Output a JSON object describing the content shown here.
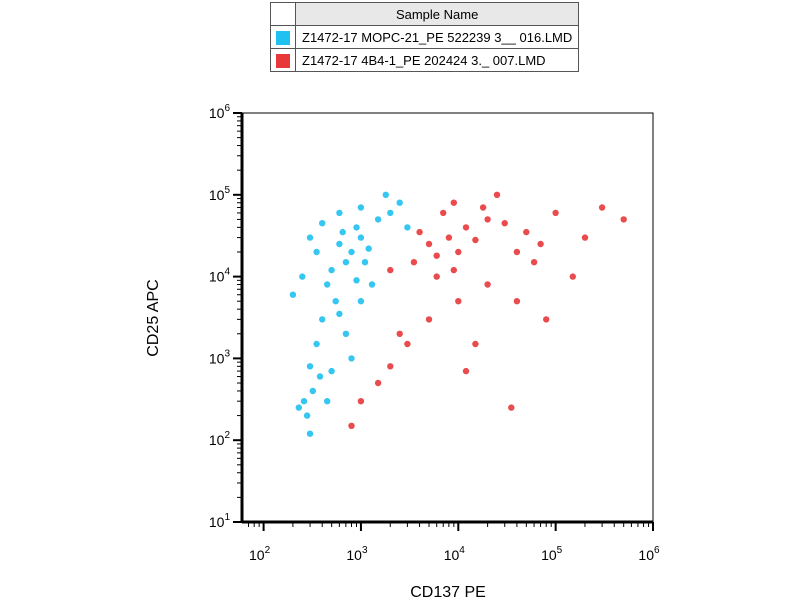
{
  "legend": {
    "header": "Sample Name",
    "entries": [
      {
        "label": "Z1472-17 MOPC-21_PE 522239 3__ 016.LMD",
        "color": "#1fc1f0"
      },
      {
        "label": "Z1472-17 4B4-1_PE 202424 3._ 007.LMD",
        "color": "#e8383a"
      }
    ]
  },
  "chart_data": {
    "type": "scatter",
    "title": "",
    "xlabel": "CD137 PE",
    "ylabel": "CD25 APC",
    "xscale": "log",
    "yscale": "log",
    "xlim": [
      60,
      1000000
    ],
    "ylim": [
      10,
      1000000
    ],
    "xticks": [
      {
        "base": "10",
        "exp": "2",
        "value": 100
      },
      {
        "base": "10",
        "exp": "3",
        "value": 1000
      },
      {
        "base": "10",
        "exp": "4",
        "value": 10000
      },
      {
        "base": "10",
        "exp": "5",
        "value": 100000
      },
      {
        "base": "10",
        "exp": "6",
        "value": 1000000
      }
    ],
    "yticks": [
      {
        "base": "10",
        "exp": "1",
        "value": 10
      },
      {
        "base": "10",
        "exp": "2",
        "value": 100
      },
      {
        "base": "10",
        "exp": "3",
        "value": 1000
      },
      {
        "base": "10",
        "exp": "4",
        "value": 10000
      },
      {
        "base": "10",
        "exp": "5",
        "value": 100000
      },
      {
        "base": "10",
        "exp": "6",
        "value": 1000000
      }
    ],
    "grid": false,
    "legend_position": "top",
    "series": [
      {
        "name": "Z1472-17 MOPC-21_PE 522239 3__ 016.LMD",
        "color": "#1fc1f0",
        "points": [
          [
            800,
            20000
          ],
          [
            600,
            25000
          ],
          [
            1000,
            30000
          ],
          [
            700,
            15000
          ],
          [
            900,
            40000
          ],
          [
            500,
            12000
          ],
          [
            1200,
            22000
          ],
          [
            650,
            35000
          ],
          [
            1500,
            50000
          ],
          [
            450,
            8000
          ],
          [
            550,
            5000
          ],
          [
            400,
            3000
          ],
          [
            350,
            1500
          ],
          [
            300,
            800
          ],
          [
            320,
            400
          ],
          [
            280,
            200
          ],
          [
            300,
            120
          ],
          [
            260,
            300
          ],
          [
            700,
            2000
          ],
          [
            800,
            1000
          ],
          [
            1000,
            5000
          ],
          [
            1300,
            8000
          ],
          [
            2000,
            60000
          ],
          [
            2500,
            80000
          ],
          [
            350,
            20000
          ],
          [
            300,
            30000
          ],
          [
            250,
            10000
          ],
          [
            200,
            6000
          ],
          [
            1800,
            100000
          ],
          [
            1000,
            70000
          ],
          [
            600,
            60000
          ],
          [
            400,
            45000
          ],
          [
            3000,
            40000
          ],
          [
            900,
            9000
          ],
          [
            500,
            700
          ],
          [
            450,
            300
          ],
          [
            600,
            3500
          ],
          [
            380,
            600
          ],
          [
            230,
            250
          ],
          [
            1100,
            15000
          ]
        ]
      },
      {
        "name": "Z1472-17 4B4-1_PE 202424 3._ 007.LMD",
        "color": "#e8383a",
        "points": [
          [
            8000,
            30000
          ],
          [
            5000,
            25000
          ],
          [
            12000,
            40000
          ],
          [
            6000,
            18000
          ],
          [
            20000,
            50000
          ],
          [
            4000,
            35000
          ],
          [
            10000,
            20000
          ],
          [
            15000,
            28000
          ],
          [
            30000,
            45000
          ],
          [
            50000,
            35000
          ],
          [
            70000,
            25000
          ],
          [
            100000,
            60000
          ],
          [
            3500,
            15000
          ],
          [
            7000,
            60000
          ],
          [
            9000,
            80000
          ],
          [
            25000,
            100000
          ],
          [
            40000,
            20000
          ],
          [
            60000,
            15000
          ],
          [
            200000,
            30000
          ],
          [
            300000,
            70000
          ],
          [
            150000,
            10000
          ],
          [
            20000,
            8000
          ],
          [
            10000,
            5000
          ],
          [
            5000,
            3000
          ],
          [
            3000,
            1500
          ],
          [
            2000,
            800
          ],
          [
            1500,
            500
          ],
          [
            1000,
            300
          ],
          [
            800,
            150
          ],
          [
            2500,
            2000
          ],
          [
            40000,
            5000
          ],
          [
            80000,
            3000
          ],
          [
            15000,
            1500
          ],
          [
            35000,
            250
          ],
          [
            12000,
            700
          ],
          [
            500000,
            50000
          ],
          [
            6000,
            10000
          ],
          [
            9000,
            12000
          ],
          [
            18000,
            70000
          ],
          [
            2000,
            12000
          ]
        ]
      }
    ]
  }
}
